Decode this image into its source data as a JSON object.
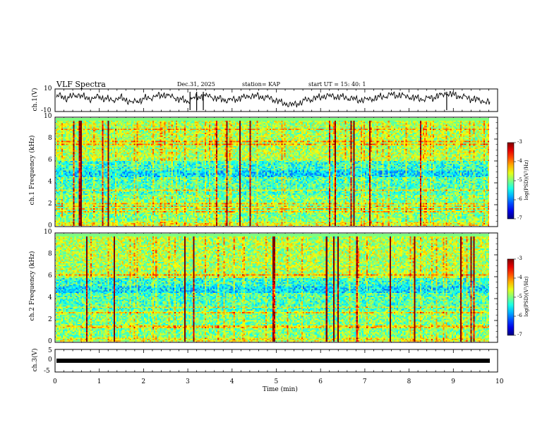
{
  "header": {
    "title": "VLF Spectra",
    "date": "Dec.31, 2025",
    "station": "station= KAP",
    "start": "start  UT =   15: 40: 1"
  },
  "chart_data": [
    {
      "type": "line",
      "name": "ch1-voltage",
      "ylabel": "ch.1(V)",
      "ylim": [
        -10,
        10
      ],
      "yticks": [
        "10",
        "-10"
      ],
      "xlim": [
        0,
        10
      ],
      "description_values": [
        4,
        2,
        5,
        1,
        3,
        0,
        2,
        -2,
        1,
        3,
        5,
        2,
        -1,
        3,
        4,
        1,
        0,
        2,
        4,
        3,
        1,
        -3,
        -4,
        0,
        2,
        4,
        3,
        2,
        0,
        1,
        3,
        5,
        4,
        2,
        1,
        3,
        6,
        4,
        2,
        0,
        -2
      ]
    },
    {
      "type": "heatmap",
      "name": "ch1-spectrogram",
      "ylabel": "ch.1 Frequency (kHz)",
      "ylim": [
        0,
        10
      ],
      "yticks": [
        "0",
        "2",
        "4",
        "6",
        "8",
        "10"
      ],
      "xlim": [
        0,
        10
      ],
      "colorbar": {
        "label": "log(PSD)(V²/Hz)",
        "range": [
          -7,
          -3
        ],
        "ticks": [
          "-3",
          "-4",
          "-5",
          "-6",
          "-7"
        ]
      }
    },
    {
      "type": "heatmap",
      "name": "ch2-spectrogram",
      "ylabel": "ch.2 Frequency (kHz)",
      "ylim": [
        0,
        10
      ],
      "yticks": [
        "0",
        "2",
        "4",
        "6",
        "8",
        "10"
      ],
      "xlim": [
        0,
        10
      ],
      "colorbar": {
        "label": "log(PSD)(V²/Hz)",
        "range": [
          -7,
          -3
        ],
        "ticks": [
          "-3",
          "-4",
          "-5",
          "-6",
          "-7"
        ]
      }
    },
    {
      "type": "line",
      "name": "ch3-voltage",
      "ylabel": "ch.3(V)",
      "ylim": [
        -5,
        5
      ],
      "yticks": [
        "5",
        "0",
        "-5"
      ],
      "xlim": [
        0,
        10
      ],
      "level": 0
    }
  ],
  "xaxis": {
    "label": "Time  (min)",
    "ticks": [
      "0",
      "1",
      "2",
      "3",
      "4",
      "5",
      "6",
      "7",
      "8",
      "9",
      "10"
    ]
  }
}
